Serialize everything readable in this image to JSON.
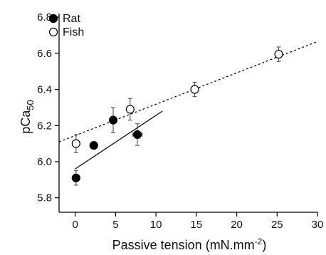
{
  "chart_data": {
    "type": "scatter",
    "xlabel": "Passive tension (mN.mm",
    "xlabel_sup": "-2",
    "xlabel_end": ")",
    "ylabel": "pCa",
    "ylabel_sub": "50",
    "xlim": [
      -2,
      30
    ],
    "ylim": [
      5.72,
      6.82
    ],
    "x_ticks": [
      0,
      5,
      10,
      15,
      20,
      25,
      30
    ],
    "y_ticks": [
      5.8,
      6.0,
      6.2,
      6.4,
      6.6,
      6.8
    ],
    "x_tick_labels": [
      "0",
      "5",
      "10",
      "15",
      "20",
      "25",
      "30"
    ],
    "y_tick_labels": [
      "5.8",
      "6.0",
      "6.2",
      "6.4",
      "6.6",
      "6.8"
    ],
    "legend_position": "top-left",
    "series": [
      {
        "name": "Rat",
        "marker": "filled-circle",
        "color": "#000000",
        "points": [
          {
            "x": 0.1,
            "y": 5.91,
            "yerr": 0.04
          },
          {
            "x": 2.3,
            "y": 6.09,
            "yerr": 0.02
          },
          {
            "x": 4.7,
            "y": 6.23,
            "yerr": 0.07
          },
          {
            "x": 7.7,
            "y": 6.15,
            "yerr": 0.06,
            "xerr": 0.6
          }
        ],
        "fit": {
          "style": "solid",
          "x": [
            0,
            10.8
          ],
          "y": [
            5.96,
            6.28
          ]
        }
      },
      {
        "name": "Fish",
        "marker": "open-circle",
        "color": "#000000",
        "points": [
          {
            "x": 0.1,
            "y": 6.1,
            "yerr": 0.05
          },
          {
            "x": 6.8,
            "y": 6.29,
            "yerr": 0.06
          },
          {
            "x": 14.8,
            "y": 6.4,
            "yerr": 0.04
          },
          {
            "x": 25.2,
            "y": 6.595,
            "yerr": 0.04
          }
        ],
        "fit": {
          "style": "dotted",
          "x": [
            -2,
            30
          ],
          "y": [
            6.11,
            6.665
          ]
        }
      }
    ]
  }
}
